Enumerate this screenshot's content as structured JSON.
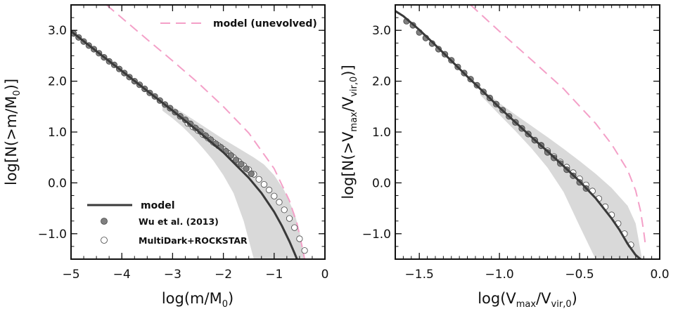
{
  "chart_data": [
    {
      "type": "line",
      "panel": "left",
      "xlim": [
        -5,
        0
      ],
      "ylim": [
        -1.5,
        3.5
      ],
      "x_ticks": [
        -5,
        -4,
        -3,
        -2,
        -1,
        0
      ],
      "x_tick_labels": [
        "−5",
        "−4",
        "−3",
        "−2",
        "−1",
        "0"
      ],
      "y_ticks": [
        -1,
        0,
        1,
        2,
        3
      ],
      "y_tick_labels": [
        "−1.0",
        "0.0",
        "1.0",
        "2.0",
        "3.0"
      ],
      "xlabel": {
        "main": "log(m/M",
        "sub": "0",
        "end": ")"
      },
      "ylabel": {
        "main": "log[N(>m/M",
        "sub": "0",
        "end": ")]"
      },
      "legend": {
        "placement": "bottom-left",
        "items": [
          {
            "label": "model",
            "marker": "line"
          },
          {
            "label": "Wu et al. (2013)",
            "marker": "filled-circle"
          },
          {
            "label": "MultiDark+ROCKSTAR",
            "marker": "open-circle"
          }
        ]
      },
      "unevolved_legend": {
        "placement": "top-right",
        "label": "model (unevolved)",
        "marker": "dashed-line"
      },
      "colors": {
        "model": "#3a3a3a",
        "unevolved": "#f4a0c8",
        "band": "#d9d9d9",
        "filled_marker": "#808080"
      },
      "series": [
        {
          "name": "model",
          "style": "solid",
          "x": [
            -5.0,
            -4.5,
            -4.0,
            -3.5,
            -3.0,
            -2.5,
            -2.0,
            -1.5,
            -1.25,
            -1.0,
            -0.85,
            -0.7,
            -0.6,
            -0.55
          ],
          "y": [
            2.98,
            2.59,
            2.2,
            1.81,
            1.42,
            1.02,
            0.6,
            0.1,
            -0.2,
            -0.57,
            -0.84,
            -1.15,
            -1.38,
            -1.5
          ]
        },
        {
          "name": "model (unevolved)",
          "style": "dashed",
          "x": [
            -4.3,
            -3.5,
            -3.0,
            -2.5,
            -2.0,
            -1.5,
            -1.0,
            -0.7,
            -0.55,
            -0.45,
            -0.4
          ],
          "y": [
            3.5,
            2.82,
            2.4,
            1.97,
            1.5,
            0.98,
            0.28,
            -0.35,
            -0.8,
            -1.25,
            -1.5
          ]
        },
        {
          "name": "Wu et al. (2013)",
          "style": "filled-marker",
          "x": [
            -4.95,
            -4.85,
            -4.75,
            -4.65,
            -4.55,
            -4.45,
            -4.35,
            -4.25,
            -4.15,
            -4.05,
            -3.95,
            -3.85,
            -3.75,
            -3.65,
            -3.55,
            -3.45,
            -3.35,
            -3.25,
            -3.15,
            -3.05,
            -2.95,
            -2.85,
            -2.75,
            -2.65,
            -2.55,
            -2.45,
            -2.35,
            -2.25,
            -2.15,
            -2.05,
            -1.95,
            -1.85,
            -1.75,
            -1.65,
            -1.55,
            -1.45
          ],
          "y": [
            2.94,
            2.86,
            2.78,
            2.7,
            2.63,
            2.55,
            2.47,
            2.39,
            2.32,
            2.24,
            2.16,
            2.08,
            2.0,
            1.93,
            1.85,
            1.77,
            1.7,
            1.62,
            1.54,
            1.47,
            1.39,
            1.31,
            1.24,
            1.16,
            1.08,
            1.01,
            0.93,
            0.85,
            0.77,
            0.7,
            0.62,
            0.54,
            0.45,
            0.37,
            0.28,
            0.18
          ]
        },
        {
          "name": "MultiDark+ROCKSTAR",
          "style": "open-marker",
          "x": [
            -2.7,
            -2.6,
            -2.5,
            -2.4,
            -2.3,
            -2.2,
            -2.1,
            -2.0,
            -1.9,
            -1.8,
            -1.7,
            -1.6,
            -1.5,
            -1.4,
            -1.3,
            -1.2,
            -1.1,
            -1.0,
            -0.9,
            -0.8,
            -0.7,
            -0.6,
            -0.5,
            -0.4
          ],
          "y": [
            1.17,
            1.1,
            1.03,
            0.95,
            0.88,
            0.8,
            0.73,
            0.66,
            0.58,
            0.5,
            0.42,
            0.34,
            0.26,
            0.17,
            0.07,
            -0.03,
            -0.14,
            -0.26,
            -0.38,
            -0.53,
            -0.7,
            -0.88,
            -1.1,
            -1.33
          ]
        },
        {
          "name": "scatter band",
          "style": "band",
          "x": [
            -3.2,
            -3.0,
            -2.8,
            -2.6,
            -2.4,
            -2.2,
            -2.0,
            -1.8,
            -1.6,
            -1.4,
            -1.2,
            -1.0,
            -0.8,
            -0.6,
            -0.5,
            -0.4
          ],
          "upper": [
            1.6,
            1.5,
            1.38,
            1.25,
            1.12,
            0.99,
            0.86,
            0.74,
            0.62,
            0.5,
            0.36,
            0.15,
            -0.15,
            -0.6,
            -0.95,
            -1.5
          ],
          "lower": [
            1.42,
            1.27,
            1.1,
            0.9,
            0.68,
            0.44,
            0.15,
            -0.2,
            -0.75,
            -1.5,
            -1.5,
            -1.5,
            -1.5,
            -1.5,
            -1.5,
            -1.5
          ]
        }
      ]
    },
    {
      "type": "line",
      "panel": "right",
      "xlim": [
        -1.65,
        0.0
      ],
      "ylim": [
        -1.5,
        3.5
      ],
      "x_ticks": [
        -1.5,
        -1.0,
        -0.5,
        0.0
      ],
      "x_tick_labels": [
        "−1.5",
        "−1.0",
        "−0.5",
        "0.0"
      ],
      "y_ticks": [
        -1,
        0,
        1,
        2,
        3
      ],
      "y_tick_labels": [
        "−1.0",
        "0.0",
        "1.0",
        "2.0",
        "3.0"
      ],
      "xlabel": {
        "main": "log(V",
        "sub1": "max",
        "mid": "/V",
        "sub2": "vir,0",
        "end": ")"
      },
      "ylabel": {
        "main": "log[N(>V",
        "sub1": "max",
        "mid": "/V",
        "sub2": "vir,0",
        "end": ")]"
      },
      "colors": {
        "model": "#3a3a3a",
        "unevolved": "#f4a0c8",
        "band": "#d9d9d9",
        "filled_marker": "#808080"
      },
      "series": [
        {
          "name": "model",
          "style": "solid",
          "x": [
            -1.65,
            -1.6,
            -1.5,
            -1.4,
            -1.3,
            -1.2,
            -1.1,
            -1.0,
            -0.9,
            -0.8,
            -0.7,
            -0.6,
            -0.5,
            -0.4,
            -0.3,
            -0.25,
            -0.2,
            -0.15,
            -0.12
          ],
          "y": [
            3.38,
            3.28,
            3.01,
            2.71,
            2.4,
            2.09,
            1.79,
            1.48,
            1.19,
            0.9,
            0.62,
            0.33,
            0.03,
            -0.3,
            -0.7,
            -0.93,
            -1.2,
            -1.42,
            -1.5
          ]
        },
        {
          "name": "model (unevolved)",
          "style": "dashed",
          "x": [
            -1.18,
            -1.0,
            -0.8,
            -0.6,
            -0.4,
            -0.3,
            -0.2,
            -0.15,
            -0.12,
            -0.1,
            -0.09
          ],
          "y": [
            3.5,
            2.98,
            2.42,
            1.85,
            1.17,
            0.76,
            0.25,
            -0.15,
            -0.55,
            -0.95,
            -1.2
          ]
        },
        {
          "name": "Wu et al. (2013)",
          "style": "filled-marker",
          "x": [
            -1.58,
            -1.54,
            -1.5,
            -1.46,
            -1.42,
            -1.38,
            -1.34,
            -1.3,
            -1.26,
            -1.22,
            -1.18,
            -1.14,
            -1.1,
            -1.06,
            -1.02,
            -0.98,
            -0.94,
            -0.9,
            -0.86,
            -0.82,
            -0.78,
            -0.74,
            -0.7,
            -0.66,
            -0.62,
            -0.58,
            -0.54,
            -0.5,
            -0.46
          ],
          "y": [
            3.18,
            3.1,
            2.96,
            2.85,
            2.74,
            2.63,
            2.53,
            2.41,
            2.28,
            2.16,
            2.04,
            1.92,
            1.79,
            1.67,
            1.55,
            1.43,
            1.31,
            1.19,
            1.07,
            0.96,
            0.84,
            0.73,
            0.6,
            0.49,
            0.38,
            0.26,
            0.14,
            0.01,
            -0.11
          ]
        },
        {
          "name": "MultiDark+ROCKSTAR",
          "style": "open-marker",
          "x": [
            -0.9,
            -0.86,
            -0.82,
            -0.78,
            -0.74,
            -0.7,
            -0.66,
            -0.62,
            -0.58,
            -0.54,
            -0.5,
            -0.46,
            -0.42,
            -0.38,
            -0.34,
            -0.3,
            -0.26,
            -0.22,
            -0.18
          ],
          "y": [
            1.19,
            1.07,
            0.96,
            0.84,
            0.74,
            0.63,
            0.52,
            0.41,
            0.31,
            0.2,
            0.08,
            -0.04,
            -0.16,
            -0.31,
            -0.47,
            -0.63,
            -0.8,
            -1.0,
            -1.22
          ]
        },
        {
          "name": "scatter band",
          "style": "band",
          "x": [
            -1.12,
            -1.0,
            -0.9,
            -0.8,
            -0.7,
            -0.6,
            -0.5,
            -0.4,
            -0.3,
            -0.2,
            -0.15,
            -0.11
          ],
          "upper": [
            1.87,
            1.57,
            1.34,
            1.12,
            0.9,
            0.67,
            0.43,
            0.18,
            -0.1,
            -0.45,
            -0.8,
            -1.5
          ],
          "lower": [
            1.73,
            1.34,
            1.02,
            0.68,
            0.3,
            -0.18,
            -0.85,
            -1.5,
            -1.5,
            -1.5,
            -1.5,
            -1.5
          ]
        }
      ]
    }
  ]
}
